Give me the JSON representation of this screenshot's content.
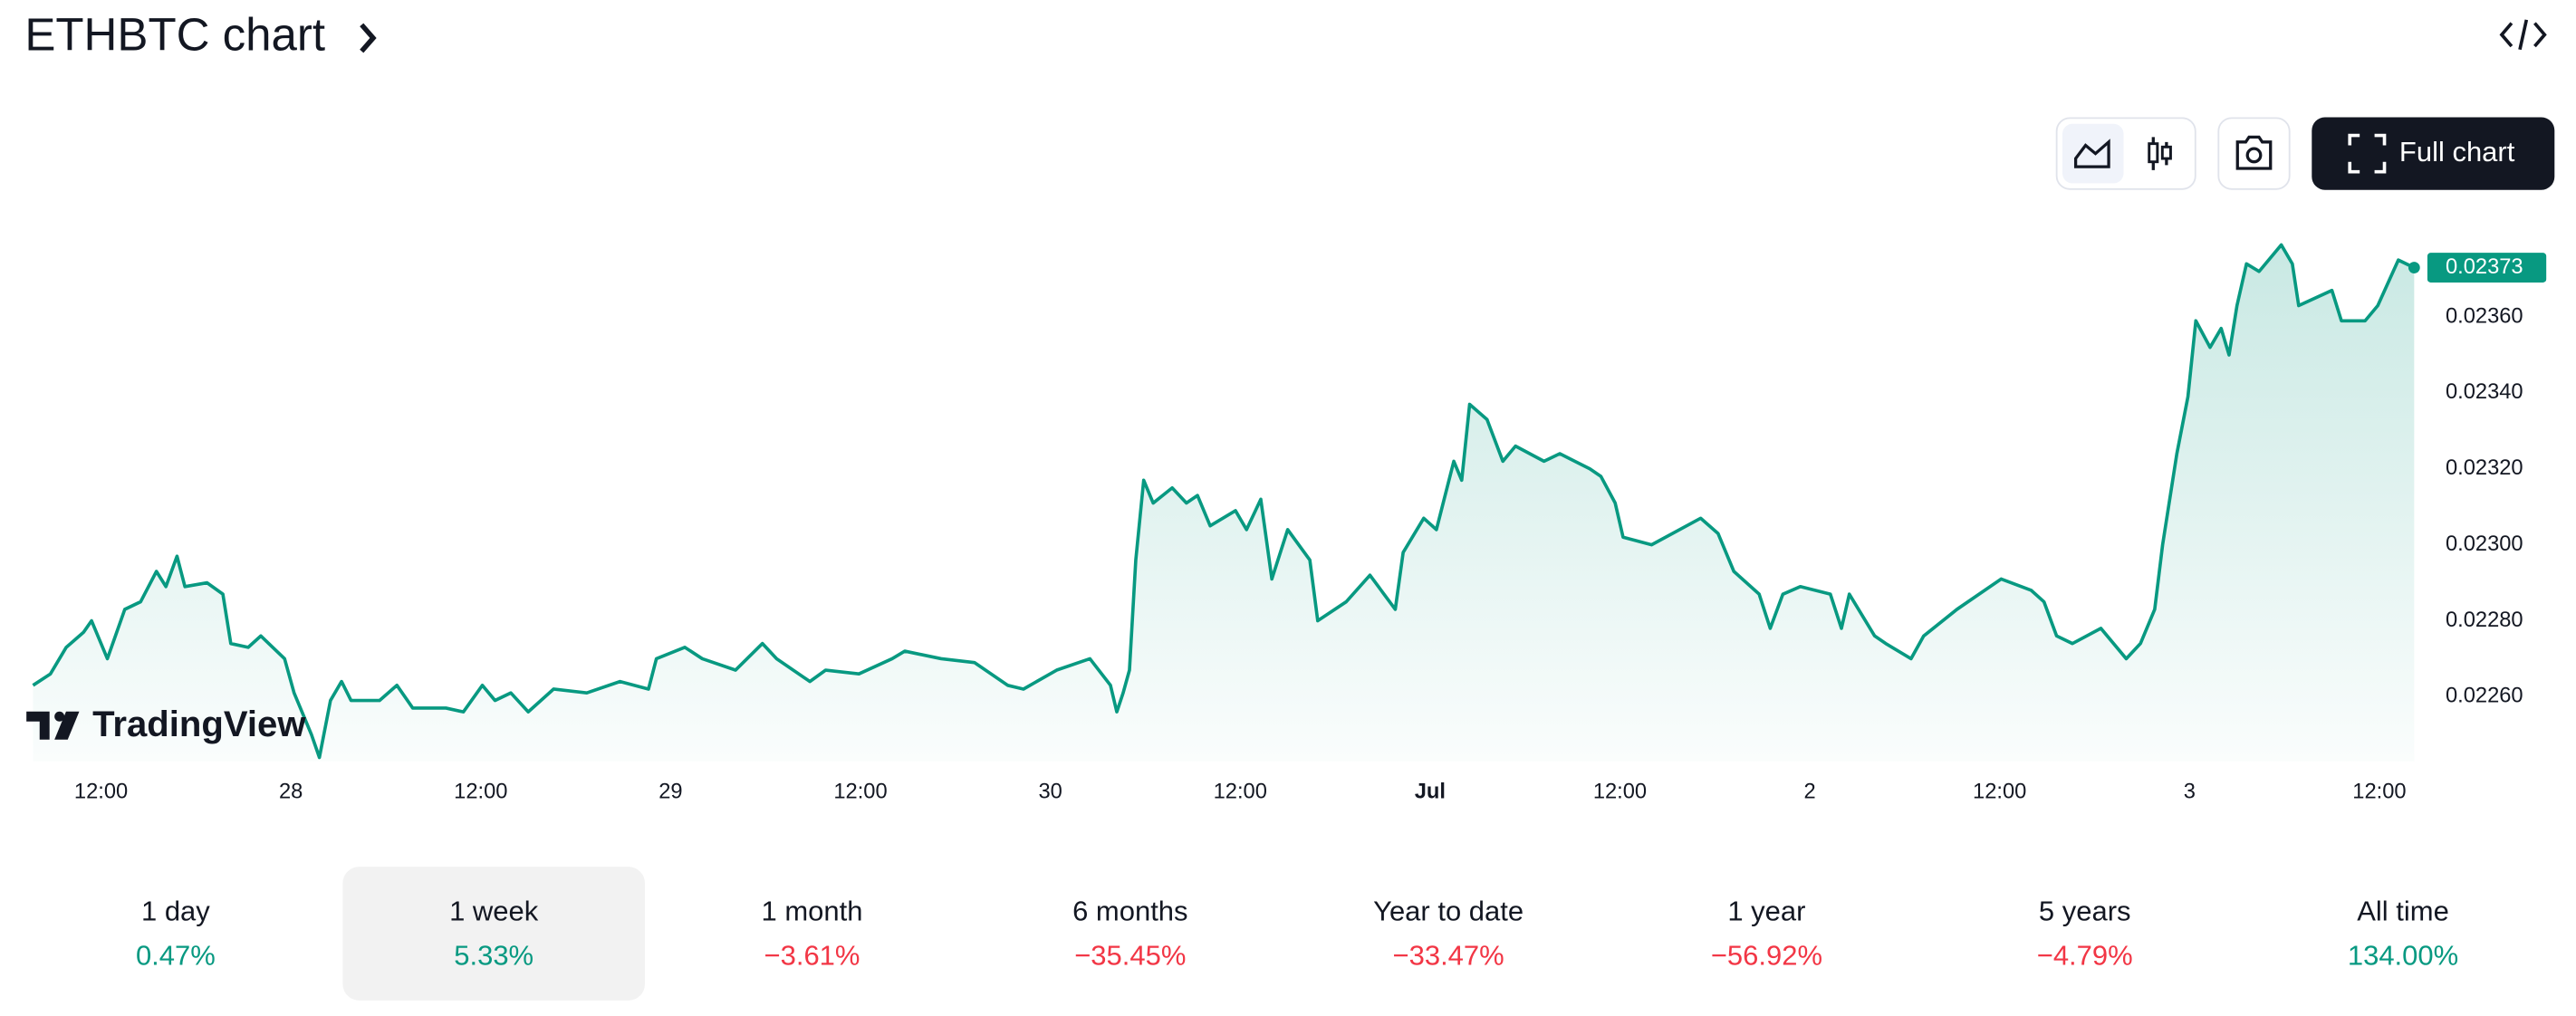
{
  "header": {
    "title": "ETHBTC chart",
    "full_chart": "Full chart",
    "watermark": "TradingView"
  },
  "chart_data": {
    "type": "line",
    "color": "#089981",
    "x": [
      7.7,
      8.8,
      9.8,
      10.9,
      11.4,
      12.4,
      13.5,
      14.5,
      15.5,
      16.1,
      16.8,
      17.3,
      18.7,
      19.7,
      20.2,
      21.3,
      22.1,
      23.6,
      24.2,
      25.3,
      25.8,
      26.5,
      27.2,
      27.8,
      29.6,
      30.7,
      31.7,
      33.8,
      34.9,
      36.1,
      36.9,
      37.9,
      39.0,
      40.6,
      42.7,
      44.8,
      46.6,
      47.1,
      48.9,
      50.0,
      52.1,
      53.8,
      54.7,
      56.8,
      57.8,
      59.9,
      62.0,
      62.8,
      65.1,
      67.2,
      69.3,
      70.3,
      72.4,
      74.5,
      75.8,
      76.2,
      76.6,
      77.0,
      77.4,
      77.9,
      78.5,
      79.7,
      80.6,
      81.3,
      82.1,
      83.7,
      84.4,
      85.3,
      86.0,
      87.0,
      88.4,
      88.9,
      90.7,
      92.2,
      93.8,
      94.3,
      95.6,
      96.4,
      97.5,
      98.0,
      98.5,
      99.6,
      100.6,
      101.4,
      103.2,
      104.2,
      106.1,
      106.8,
      107.7,
      108.2,
      110.0,
      113.1,
      114.2,
      115.2,
      116.8,
      117.5,
      118.3,
      119.4,
      121.3,
      122.0,
      122.5,
      124.1,
      124.8,
      126.4,
      127.2,
      129.3,
      131.4,
      132.1,
      134.0,
      134.8,
      135.6,
      136.6,
      138.4,
      140.0,
      140.9,
      141.8,
      142.3,
      143.2,
      143.9,
      144.4,
      145.3,
      146.0,
      146.5,
      147.0,
      147.6,
      148.4,
      149.8,
      150.5,
      150.9,
      153.0,
      153.6,
      155.1,
      155.9,
      157.2,
      158.2
    ],
    "values": [
      0.02263,
      0.02266,
      0.02273,
      0.02277,
      0.0228,
      0.0227,
      0.02283,
      0.02285,
      0.02293,
      0.02289,
      0.02297,
      0.02289,
      0.0229,
      0.02287,
      0.02274,
      0.02273,
      0.02276,
      0.0227,
      0.02261,
      0.0225,
      0.02244,
      0.02259,
      0.02264,
      0.02259,
      0.02259,
      0.02263,
      0.02257,
      0.02257,
      0.02256,
      0.02263,
      0.02259,
      0.02261,
      0.02256,
      0.02262,
      0.02261,
      0.02264,
      0.02262,
      0.0227,
      0.02273,
      0.0227,
      0.02267,
      0.02274,
      0.0227,
      0.02264,
      0.02267,
      0.02266,
      0.0227,
      0.02272,
      0.0227,
      0.02269,
      0.02263,
      0.02262,
      0.02267,
      0.0227,
      0.02263,
      0.02256,
      0.02261,
      0.02267,
      0.02296,
      0.02317,
      0.02311,
      0.02315,
      0.02311,
      0.02313,
      0.02305,
      0.02309,
      0.02304,
      0.02312,
      0.02291,
      0.02304,
      0.02296,
      0.0228,
      0.02285,
      0.02292,
      0.02283,
      0.02298,
      0.02307,
      0.02304,
      0.02322,
      0.02317,
      0.02337,
      0.02333,
      0.02322,
      0.02326,
      0.02322,
      0.02324,
      0.0232,
      0.02318,
      0.02311,
      0.02302,
      0.023,
      0.02307,
      0.02303,
      0.02293,
      0.02287,
      0.02278,
      0.02287,
      0.02289,
      0.02287,
      0.02278,
      0.02287,
      0.02276,
      0.02274,
      0.0227,
      0.02276,
      0.02283,
      0.02289,
      0.02291,
      0.02288,
      0.02285,
      0.02276,
      0.02274,
      0.02278,
      0.0227,
      0.02274,
      0.02283,
      0.023,
      0.02324,
      0.02339,
      0.02359,
      0.02352,
      0.02357,
      0.0235,
      0.02363,
      0.02374,
      0.02372,
      0.02379,
      0.02374,
      0.02363,
      0.02367,
      0.02359,
      0.02359,
      0.02363,
      0.02375,
      0.02373
    ],
    "last_label": "0.02373",
    "xlim": [
      7.7,
      158.2
    ],
    "xticks": [
      {
        "value": 12,
        "label": "12:00"
      },
      {
        "value": 24,
        "label": "28"
      },
      {
        "value": 36,
        "label": "12:00"
      },
      {
        "value": 48,
        "label": "29"
      },
      {
        "value": 60,
        "label": "12:00"
      },
      {
        "value": 72,
        "label": "30"
      },
      {
        "value": 84,
        "label": "12:00"
      },
      {
        "value": 96,
        "label": "Jul"
      },
      {
        "value": 108,
        "label": "12:00"
      },
      {
        "value": 120,
        "label": "2"
      },
      {
        "value": 132,
        "label": "12:00"
      },
      {
        "value": 144,
        "label": "3"
      },
      {
        "value": 156,
        "label": "12:00"
      }
    ],
    "ylim": [
      0.02243,
      0.02383
    ],
    "yticks": [
      {
        "value": 0.0226,
        "label": "0.02260"
      },
      {
        "value": 0.0228,
        "label": "0.02280"
      },
      {
        "value": 0.023,
        "label": "0.02300"
      },
      {
        "value": 0.0232,
        "label": "0.02320"
      },
      {
        "value": 0.0234,
        "label": "0.02340"
      },
      {
        "value": 0.0236,
        "label": "0.02360"
      }
    ]
  },
  "periods": [
    {
      "label": "1 day",
      "change": "0.47%",
      "color": "#089981"
    },
    {
      "label": "1 week",
      "change": "5.33%",
      "color": "#089981",
      "selected": true
    },
    {
      "label": "1 month",
      "change": "−3.61%",
      "color": "#f23645"
    },
    {
      "label": "6 months",
      "change": "−35.45%",
      "color": "#f23645"
    },
    {
      "label": "Year to date",
      "change": "−33.47%",
      "color": "#f23645"
    },
    {
      "label": "1 year",
      "change": "−56.92%",
      "color": "#f23645"
    },
    {
      "label": "5 years",
      "change": "−4.79%",
      "color": "#f23645"
    },
    {
      "label": "All time",
      "change": "134.00%",
      "color": "#089981"
    }
  ]
}
